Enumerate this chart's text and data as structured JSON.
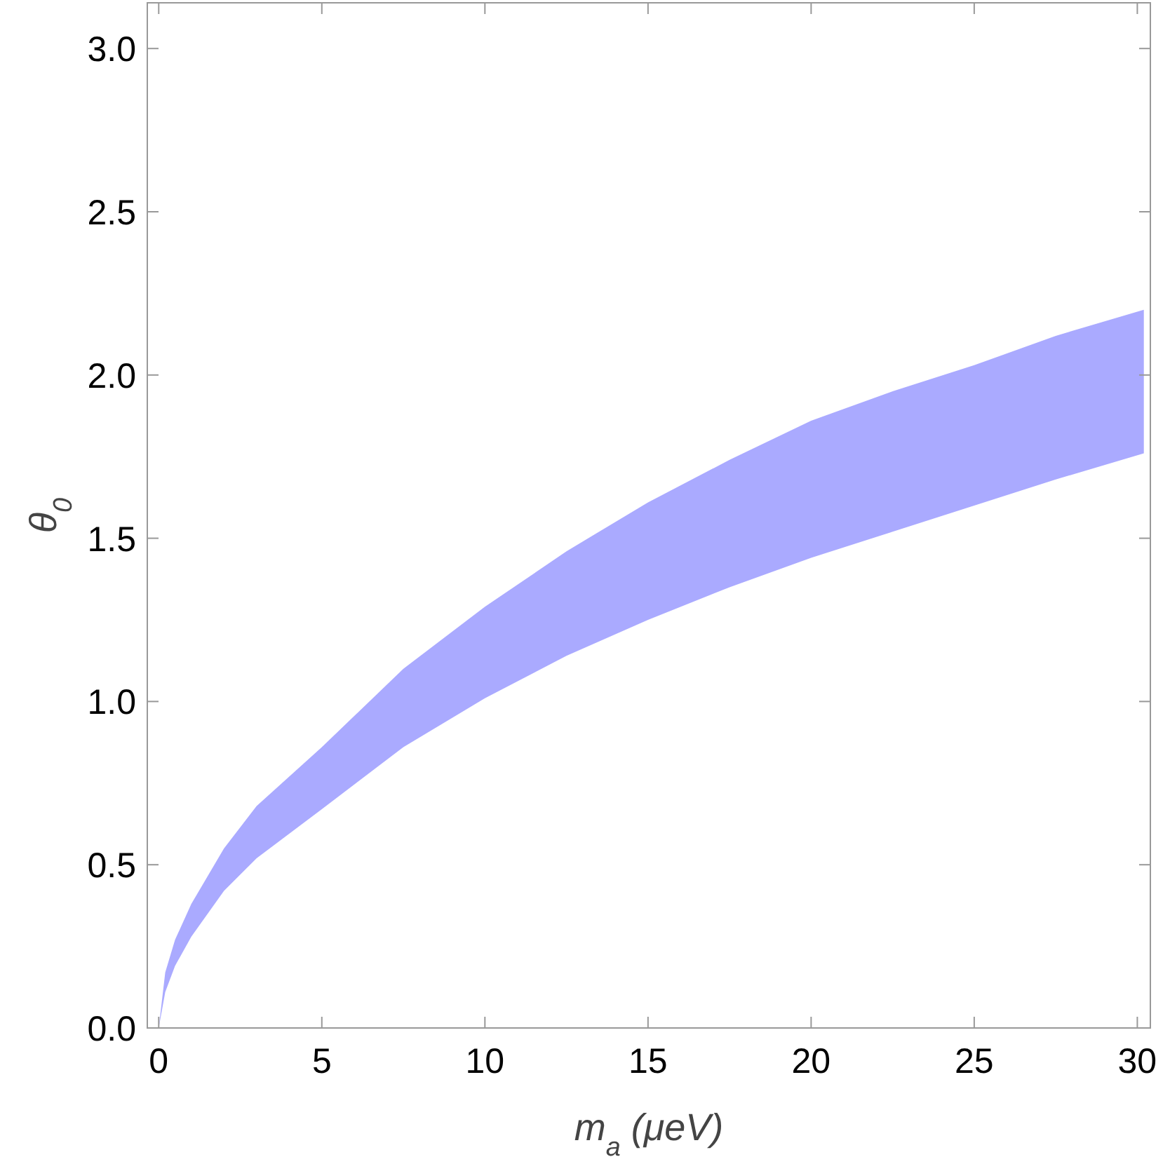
{
  "chart_data": {
    "type": "area",
    "xlabel": "m$_{a}$ (μeV)",
    "ylabel": "θ$_{0}$",
    "x": [
      0,
      0.2,
      0.5,
      1,
      2,
      3,
      5,
      7.5,
      10,
      12.5,
      15,
      17.5,
      20,
      22.5,
      25,
      27.5,
      30.2
    ],
    "series": [
      {
        "color": "#aaaaff",
        "values": [
          null,
          null,
          null,
          null,
          null,
          null,
          null,
          null,
          null,
          null,
          null,
          null,
          null,
          null,
          null,
          null,
          null
        ],
        "lower": [
          0,
          0.11,
          0.19,
          0.28,
          0.42,
          0.52,
          0.67,
          0.86,
          1.01,
          1.14,
          1.25,
          1.35,
          1.44,
          1.52,
          1.6,
          1.68,
          1.76
        ],
        "upper": [
          0,
          0.17,
          0.27,
          0.38,
          0.55,
          0.68,
          0.86,
          1.1,
          1.29,
          1.46,
          1.61,
          1.74,
          1.86,
          1.95,
          2.03,
          2.12,
          2.2
        ]
      }
    ],
    "xlim": [
      -0.35,
      30.4
    ],
    "ylim": [
      0,
      3.14
    ],
    "xticks": [
      0,
      5,
      10,
      15,
      20,
      25,
      30
    ],
    "yticks": [
      {
        "value": 0,
        "label": "0.0"
      },
      {
        "value": 0.5,
        "label": "0.5"
      },
      {
        "value": 1,
        "label": "1.0"
      },
      {
        "value": 1.5,
        "label": "1.5"
      },
      {
        "value": 2,
        "label": "2.0"
      },
      {
        "value": 2.5,
        "label": "2.5"
      },
      {
        "value": 3,
        "label": "3.0"
      }
    ],
    "grid": false
  }
}
